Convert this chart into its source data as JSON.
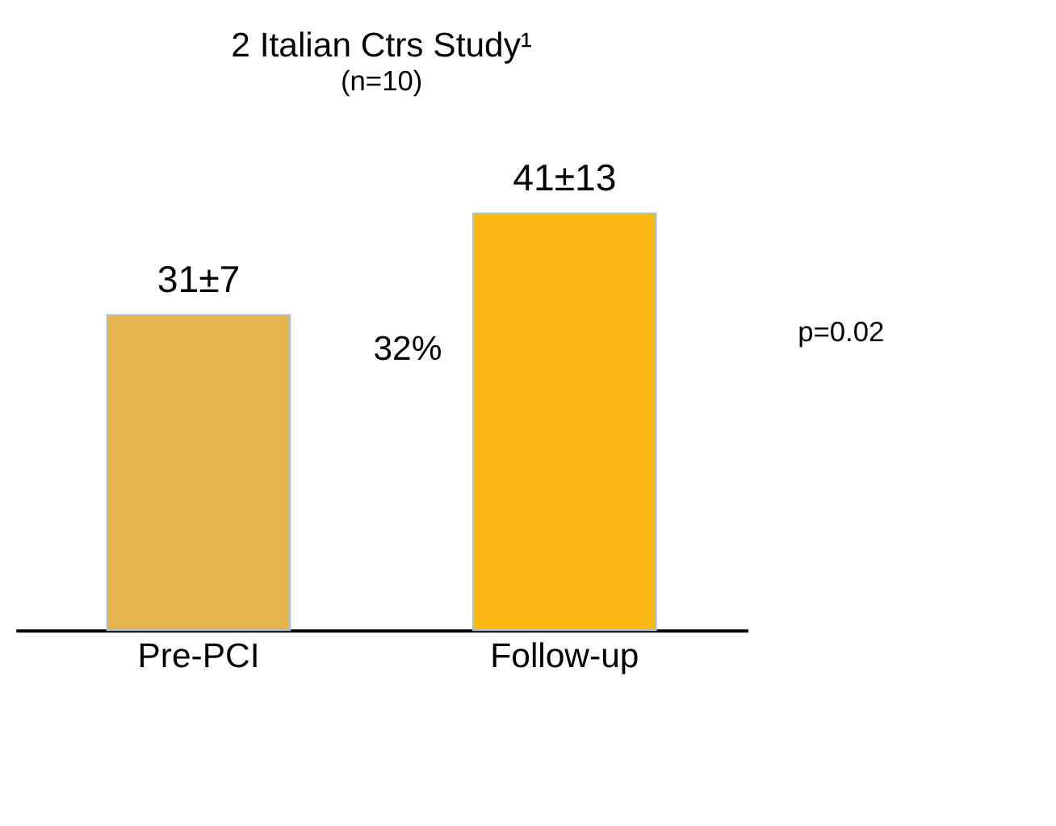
{
  "chart_data": {
    "type": "bar",
    "title": "2 Italian Ctrs Study¹",
    "subtitle": "(n=10)",
    "categories": [
      "Pre-PCI",
      "Follow-up"
    ],
    "values": [
      31,
      41
    ],
    "colors": [
      "#e6b54f",
      "#fbb714"
    ],
    "value_labels": [
      "31±7",
      "41±13"
    ],
    "annotations": [
      "32%",
      "p=0.02"
    ],
    "grid": false,
    "legend": false
  }
}
